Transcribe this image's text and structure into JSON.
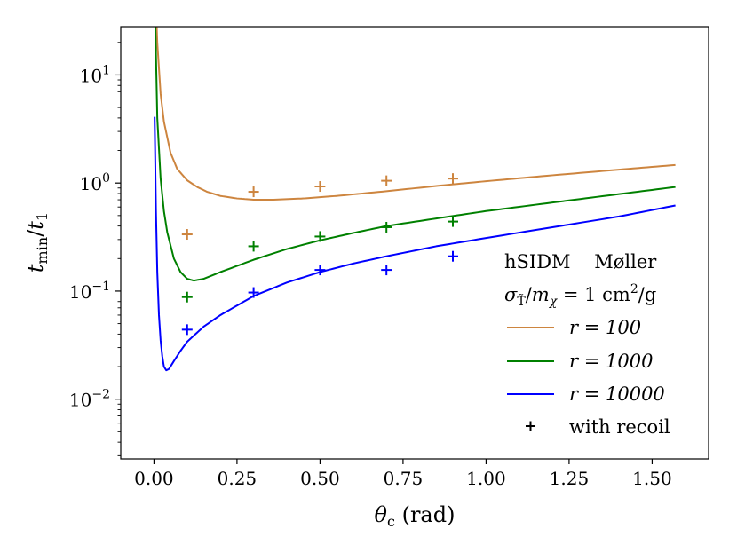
{
  "chart_data": {
    "type": "line",
    "xscale": "linear",
    "yscale": "log",
    "xlim": [
      -0.1,
      1.67
    ],
    "ylim": [
      0.0028,
      28
    ],
    "xticks": [
      0.0,
      0.25,
      0.5,
      0.75,
      1.0,
      1.25,
      1.5
    ],
    "xtick_labels": [
      "0.00",
      "0.25",
      "0.50",
      "0.75",
      "1.00",
      "1.25",
      "1.50"
    ],
    "yticks": [
      0.01,
      0.1,
      1,
      10
    ],
    "ytick_labels": [
      {
        "base": "10",
        "exp": "−2"
      },
      {
        "base": "10",
        "exp": "−1"
      },
      {
        "base": "10",
        "exp": "0"
      },
      {
        "base": "10",
        "exp": "1"
      }
    ],
    "xlabel": {
      "symbol": "θ",
      "sub": "c",
      "unit": " (rad)"
    },
    "ylabel": {
      "num": "t",
      "num_sub": "min",
      "slash": "/",
      "den": "t",
      "den_sub": "1"
    },
    "legend": {
      "location": "center-right",
      "title_line1": "hSIDM    Møller",
      "title_line2": {
        "sigma": "σ",
        "sigma_sub": "T̃",
        "slash": "/",
        "m": "m",
        "m_sub": "χ",
        "eq": " = 1 ",
        "unit": "cm",
        "unit_exp": "2",
        "unit_tail": "/g"
      },
      "entries": [
        {
          "label": "r = 100",
          "marker": "line",
          "color": "#cd853f"
        },
        {
          "label": "r = 1000",
          "marker": "line",
          "color": "#008000"
        },
        {
          "label": "r = 10000",
          "marker": "line",
          "color": "#0000ff"
        },
        {
          "label": "with recoil",
          "marker": "plus",
          "color": "#000000"
        }
      ]
    },
    "series": [
      {
        "name": "r = 100",
        "color": "#cd853f",
        "x": [
          0.008,
          0.01,
          0.02,
          0.03,
          0.05,
          0.07,
          0.1,
          0.13,
          0.16,
          0.2,
          0.25,
          0.3,
          0.36,
          0.45,
          0.55,
          0.7,
          0.85,
          1.0,
          1.2,
          1.4,
          1.57
        ],
        "y": [
          30.0,
          20.0,
          6.7,
          3.7,
          1.9,
          1.35,
          1.06,
          0.92,
          0.83,
          0.76,
          0.72,
          0.7,
          0.7,
          0.72,
          0.76,
          0.84,
          0.94,
          1.04,
          1.18,
          1.33,
          1.47
        ]
      },
      {
        "name": "r = 1000",
        "color": "#008000",
        "x": [
          0.004,
          0.01,
          0.02,
          0.03,
          0.04,
          0.06,
          0.08,
          0.1,
          0.12,
          0.15,
          0.2,
          0.3,
          0.4,
          0.5,
          0.6,
          0.7,
          0.85,
          1.0,
          1.2,
          1.4,
          1.57
        ],
        "y": [
          30.0,
          4.0,
          1.1,
          0.55,
          0.35,
          0.2,
          0.15,
          0.13,
          0.125,
          0.13,
          0.15,
          0.195,
          0.245,
          0.295,
          0.345,
          0.4,
          0.47,
          0.55,
          0.66,
          0.79,
          0.92
        ]
      },
      {
        "name": "r = 10000",
        "color": "#0000ff",
        "x": [
          0.002,
          0.006,
          0.01,
          0.015,
          0.02,
          0.025,
          0.03,
          0.037,
          0.045,
          0.06,
          0.08,
          0.1,
          0.15,
          0.2,
          0.3,
          0.4,
          0.5,
          0.6,
          0.7,
          0.85,
          1.0,
          1.2,
          1.4,
          1.57
        ],
        "y": [
          4.1,
          0.55,
          0.15,
          0.06,
          0.035,
          0.025,
          0.02,
          0.0185,
          0.019,
          0.0225,
          0.028,
          0.034,
          0.047,
          0.06,
          0.09,
          0.12,
          0.15,
          0.18,
          0.21,
          0.26,
          0.31,
          0.39,
          0.49,
          0.62
        ]
      }
    ],
    "recoil_points": [
      {
        "series": "r = 100",
        "color": "#cd853f",
        "x": [
          0.1,
          0.3,
          0.5,
          0.7,
          0.9
        ],
        "y": [
          0.335,
          0.83,
          0.93,
          1.05,
          1.1
        ]
      },
      {
        "series": "r = 1000",
        "color": "#008000",
        "x": [
          0.1,
          0.3,
          0.5,
          0.7,
          0.9
        ],
        "y": [
          0.088,
          0.26,
          0.32,
          0.39,
          0.44
        ]
      },
      {
        "series": "r = 10000",
        "color": "#0000ff",
        "x": [
          0.1,
          0.3,
          0.5,
          0.7,
          0.9
        ],
        "y": [
          0.044,
          0.097,
          0.157,
          0.157,
          0.21
        ]
      }
    ]
  }
}
